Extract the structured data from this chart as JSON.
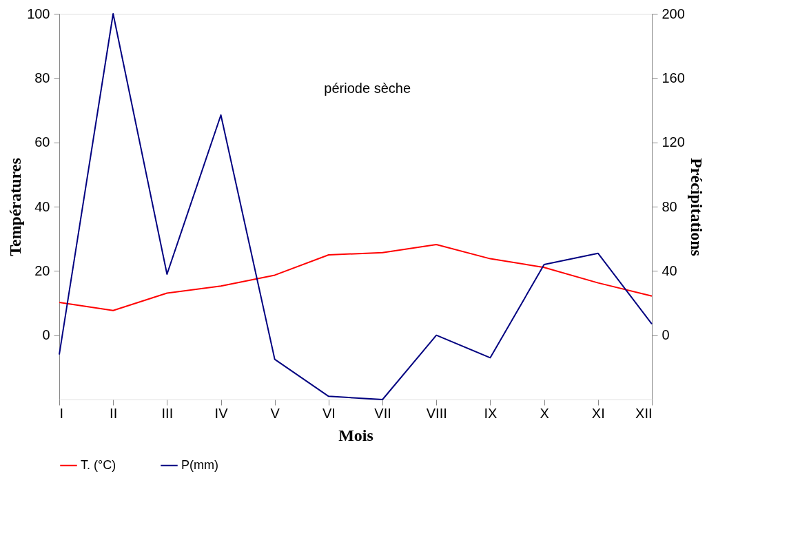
{
  "chart_data": {
    "type": "line",
    "xlabel": "Mois",
    "ylabel": "Températures",
    "y2label": "Précipitations",
    "categories": [
      "I",
      "II",
      "III",
      "IV",
      "V",
      "VI",
      "VII",
      "VIII",
      "IX",
      "X",
      "XI",
      "XII"
    ],
    "series": [
      {
        "name": "T. (°C)",
        "color": "#ff0000",
        "values": [
          10.2,
          7.7,
          13.1,
          15.3,
          18.7,
          25.0,
          25.7,
          28.2,
          23.8,
          21.1,
          16.3,
          12.2
        ]
      },
      {
        "name": "P(mm)",
        "color": "#000080",
        "axis": "y2",
        "values": [
          -12,
          200,
          38,
          137,
          -15,
          -38,
          -40,
          0,
          -14,
          44,
          51,
          7
        ]
      }
    ],
    "ylim": [
      -20,
      100
    ],
    "yticks": [
      0,
      20,
      40,
      60,
      80,
      100
    ],
    "y2lim": [
      -40,
      200
    ],
    "y2ticks": [
      0,
      40,
      80,
      120,
      160,
      200
    ],
    "annotations": [
      "période sèche"
    ],
    "grid": false,
    "legend": "bottom",
    "marker": "none",
    "line_style": "solid"
  }
}
